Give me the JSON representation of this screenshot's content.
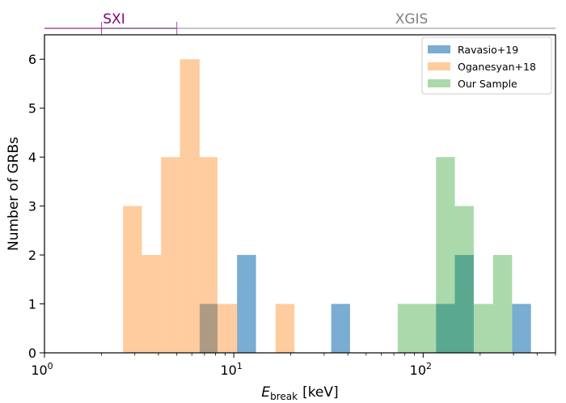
{
  "chart_data": {
    "type": "histogram",
    "xscale": "log",
    "xlim": [
      1,
      500
    ],
    "ylim": [
      0,
      6.5
    ],
    "ylabel": "Number of GRBs",
    "xlabel": {
      "symbol": "E",
      "subscript": "break",
      "unit": "[keV]"
    },
    "xticks": [
      {
        "base": "10",
        "exp": "0",
        "value": 1
      },
      {
        "base": "10",
        "exp": "1",
        "value": 10
      },
      {
        "base": "10",
        "exp": "2",
        "value": 100
      }
    ],
    "yticks": [
      0,
      1,
      2,
      3,
      4,
      5,
      6
    ],
    "series": [
      {
        "name": "Ravasio+19",
        "color": "#1f77b4",
        "alpha": 0.6,
        "bins": [
          {
            "x0": 6.6,
            "x1": 8.2,
            "count": 1
          },
          {
            "x0": 10.4,
            "x1": 13.1,
            "count": 2
          },
          {
            "x0": 32.7,
            "x1": 41.1,
            "count": 1
          },
          {
            "x0": 117,
            "x1": 147,
            "count": 1
          },
          {
            "x0": 147,
            "x1": 185,
            "count": 2
          },
          {
            "x0": 295,
            "x1": 371,
            "count": 1
          }
        ]
      },
      {
        "name": "Oganesyan+18",
        "color": "#ff7f0e",
        "alpha": 0.4,
        "bins": [
          {
            "x0": 2.6,
            "x1": 3.27,
            "count": 3
          },
          {
            "x0": 3.27,
            "x1": 4.13,
            "count": 2
          },
          {
            "x0": 4.13,
            "x1": 5.2,
            "count": 4
          },
          {
            "x0": 5.2,
            "x1": 6.6,
            "count": 6
          },
          {
            "x0": 6.6,
            "x1": 8.2,
            "count": 4
          },
          {
            "x0": 8.2,
            "x1": 10.4,
            "count": 1
          },
          {
            "x0": 16.6,
            "x1": 20.9,
            "count": 1
          }
        ]
      },
      {
        "name": "Our Sample",
        "color": "#2ca02c",
        "alpha": 0.4,
        "bins": [
          {
            "x0": 73.4,
            "x1": 92.5,
            "count": 1
          },
          {
            "x0": 92.5,
            "x1": 117,
            "count": 1
          },
          {
            "x0": 117,
            "x1": 147,
            "count": 4
          },
          {
            "x0": 147,
            "x1": 185,
            "count": 3
          },
          {
            "x0": 185,
            "x1": 234,
            "count": 1
          },
          {
            "x0": 234,
            "x1": 295,
            "count": 2
          }
        ]
      }
    ],
    "instrument_bands": [
      {
        "name": "SXI",
        "color": "#800080",
        "x0": 0.2,
        "x1": 5,
        "tick_at": [
          2,
          5
        ]
      },
      {
        "name": "XGIS",
        "color": "#808080",
        "x0": 2,
        "x1": 20000
      }
    ]
  }
}
